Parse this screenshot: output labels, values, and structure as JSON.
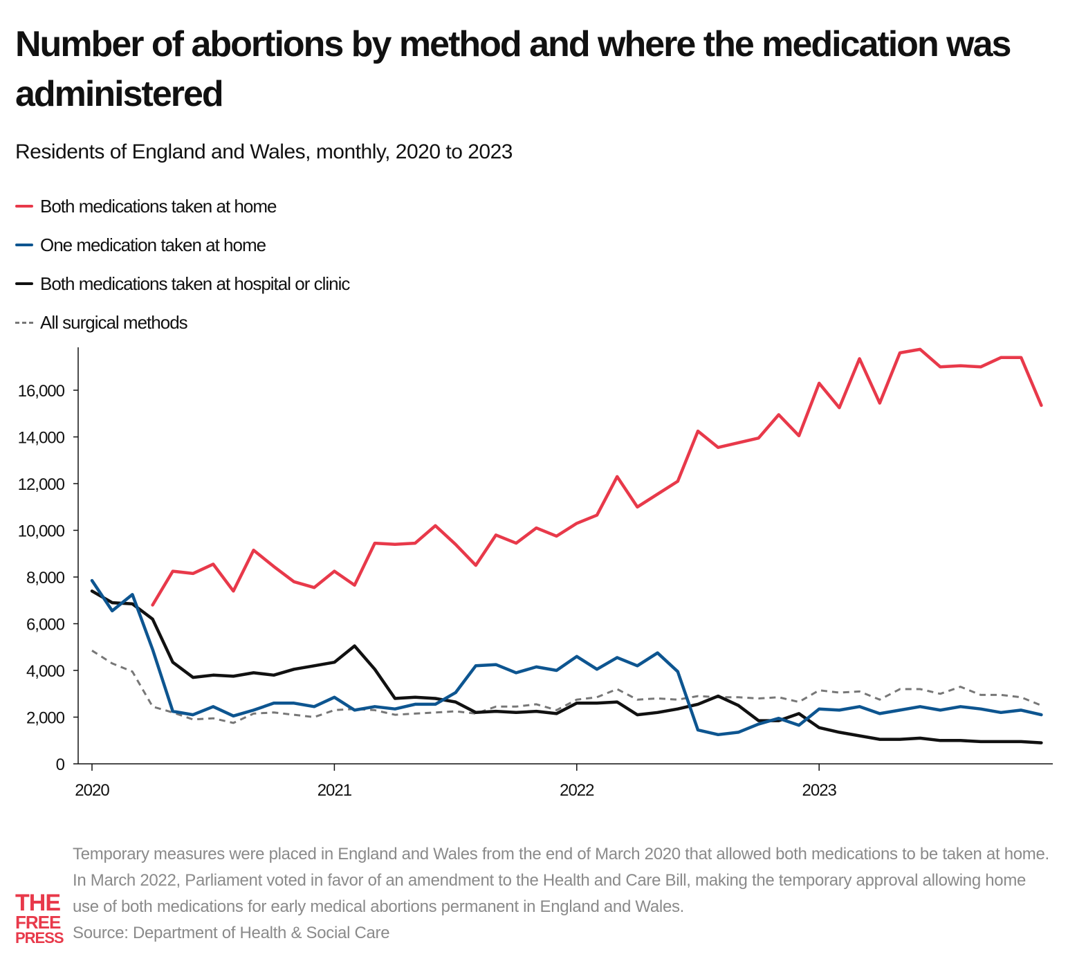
{
  "header": {
    "title": "Number of abortions by method and where the medication was administered",
    "subtitle": "Residents of England and Wales, monthly, 2020 to 2023"
  },
  "legend": [
    {
      "label": "Both medications taken at home",
      "color": "#e8394a",
      "style": "solid"
    },
    {
      "label": "One medication taken at home",
      "color": "#0d5590",
      "style": "solid"
    },
    {
      "label": "Both medications taken at hospital or clinic",
      "color": "#111111",
      "style": "solid"
    },
    {
      "label": "All surgical methods",
      "color": "#777777",
      "style": "dashed"
    }
  ],
  "footer": {
    "note": "Temporary measures were placed in England and Wales from the end of March 2020 that allowed both medications to be taken at home. In March 2022, Parliament voted in favor of an amendment to the Health and Care Bill, making the temporary approval allowing home use of both medications for early medical abortions permanent in England and Wales.",
    "source": "Source: Department of Health & Social Care",
    "logo": {
      "line1": "THE",
      "line2": "FREE",
      "line3": "PRESS"
    }
  },
  "chart_data": {
    "type": "line",
    "title": "Number of abortions by method and where the medication was administered",
    "subtitle": "Residents of England and Wales, monthly, 2020 to 2023",
    "x": [
      "2020-01",
      "2020-02",
      "2020-03",
      "2020-04",
      "2020-05",
      "2020-06",
      "2020-07",
      "2020-08",
      "2020-09",
      "2020-10",
      "2020-11",
      "2020-12",
      "2021-01",
      "2021-02",
      "2021-03",
      "2021-04",
      "2021-05",
      "2021-06",
      "2021-07",
      "2021-08",
      "2021-09",
      "2021-10",
      "2021-11",
      "2021-12",
      "2022-01",
      "2022-02",
      "2022-03",
      "2022-04",
      "2022-05",
      "2022-06",
      "2022-07",
      "2022-08",
      "2022-09",
      "2022-10",
      "2022-11",
      "2022-12",
      "2023-01",
      "2023-02",
      "2023-03",
      "2023-04",
      "2023-05",
      "2023-06",
      "2023-07",
      "2023-08",
      "2023-09",
      "2023-10",
      "2023-11",
      "2023-12"
    ],
    "x_ticks": [
      "2020",
      "2021",
      "2022",
      "2023"
    ],
    "xlabel": "",
    "ylabel": "",
    "ylim": [
      0,
      17800
    ],
    "y_ticks": [
      0,
      2000,
      4000,
      6000,
      8000,
      10000,
      12000,
      14000,
      16000
    ],
    "y_tick_labels": [
      "0",
      "2,000",
      "4,000",
      "6,000",
      "8,000",
      "10,000",
      "12,000",
      "14,000",
      "16,000"
    ],
    "grid": false,
    "legend_position": "top-left",
    "series": [
      {
        "name": "Both medications taken at home",
        "color": "#e8394a",
        "dashed": false,
        "values": [
          null,
          null,
          null,
          6800,
          8250,
          8150,
          8550,
          7400,
          9150,
          8450,
          7800,
          7550,
          8250,
          7650,
          9450,
          9400,
          9450,
          10200,
          9400,
          8500,
          9800,
          9450,
          10100,
          9750,
          10300,
          10650,
          12300,
          11000,
          11550,
          12100,
          14250,
          13550,
          13750,
          13950,
          14950,
          14050,
          16300,
          15250,
          17350,
          15450,
          17600,
          17750,
          17000,
          17050,
          17000,
          17400,
          17400,
          15350
        ]
      },
      {
        "name": "One medication taken at home",
        "color": "#0d5590",
        "dashed": false,
        "values": [
          7850,
          6550,
          7250,
          4900,
          2250,
          2100,
          2450,
          2050,
          2300,
          2600,
          2600,
          2450,
          2850,
          2300,
          2450,
          2350,
          2550,
          2550,
          3050,
          4200,
          4250,
          3900,
          4150,
          4000,
          4600,
          4050,
          4550,
          4200,
          4750,
          3950,
          1450,
          1250,
          1350,
          1700,
          1950,
          1650,
          2350,
          2300,
          2450,
          2150,
          2300,
          2450,
          2300,
          2450,
          2350,
          2200,
          2300,
          2100
        ]
      },
      {
        "name": "Both medications taken at hospital or clinic",
        "color": "#111111",
        "dashed": false,
        "values": [
          7400,
          6900,
          6850,
          6200,
          4350,
          3700,
          3800,
          3750,
          3900,
          3800,
          4050,
          4200,
          4350,
          5050,
          4050,
          2800,
          2850,
          2800,
          2650,
          2200,
          2250,
          2200,
          2250,
          2150,
          2600,
          2600,
          2650,
          2100,
          2200,
          2350,
          2550,
          2900,
          2500,
          1850,
          1850,
          2150,
          1550,
          1350,
          1200,
          1050,
          1050,
          1100,
          1000,
          1000,
          950,
          950,
          950,
          900
        ]
      },
      {
        "name": "All surgical methods",
        "color": "#777777",
        "dashed": true,
        "values": [
          4850,
          4300,
          3950,
          2450,
          2200,
          1900,
          1950,
          1750,
          2150,
          2200,
          2100,
          2000,
          2300,
          2350,
          2300,
          2100,
          2150,
          2200,
          2250,
          2150,
          2450,
          2450,
          2550,
          2300,
          2750,
          2850,
          3200,
          2750,
          2800,
          2750,
          2900,
          2850,
          2850,
          2800,
          2850,
          2650,
          3150,
          3050,
          3100,
          2750,
          3200,
          3200,
          3000,
          3300,
          2950,
          2950,
          2850,
          2500
        ]
      }
    ]
  }
}
